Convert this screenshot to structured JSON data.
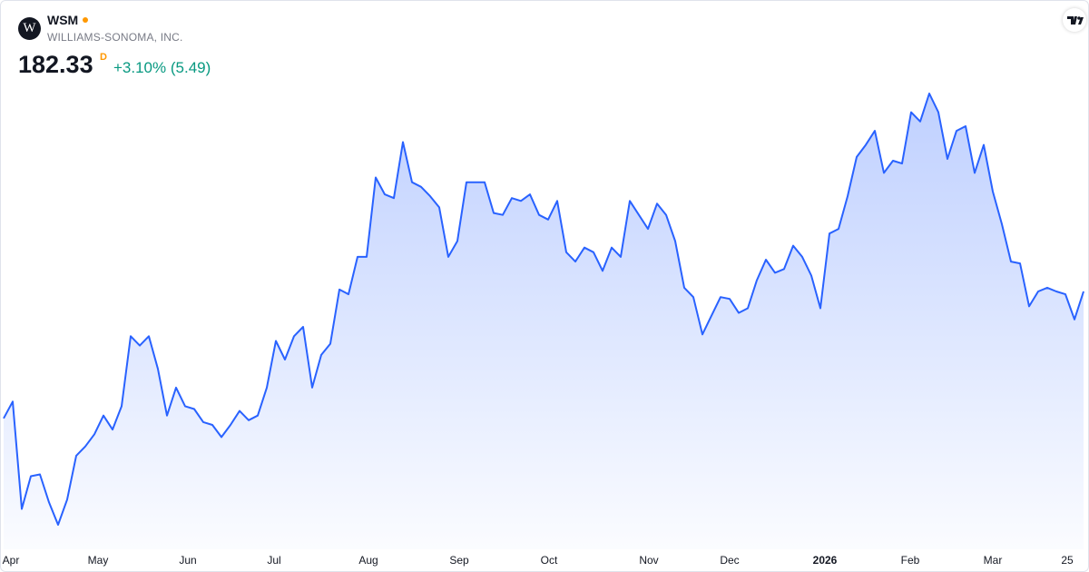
{
  "header": {
    "logo_letter": "W",
    "symbol": "WSM",
    "company": "WILLIAMS-SONOMA, INC.",
    "price": "182.33",
    "price_flag": "D",
    "change": "+3.10% (5.49)"
  },
  "chart_data": {
    "type": "area",
    "color": "#2962ff",
    "values": [
      157.44,
      160.74,
      139.69,
      146.1,
      146.46,
      140.97,
      136.58,
      141.52,
      150.12,
      151.95,
      154.33,
      157.99,
      155.25,
      159.82,
      173.55,
      171.72,
      173.55,
      167.14,
      157.99,
      163.48,
      159.82,
      159.27,
      156.71,
      156.16,
      153.78,
      156.16,
      158.91,
      157.08,
      157.99,
      163.48,
      172.63,
      168.97,
      173.55,
      175.38,
      163.48,
      169.89,
      172.08,
      182.7,
      181.78,
      189.1,
      189.1,
      204.66,
      201.36,
      200.63,
      211.61,
      203.74,
      202.83,
      201.0,
      198.8,
      189.1,
      192.21,
      203.74,
      203.74,
      203.74,
      197.7,
      197.34,
      200.63,
      200.08,
      201.36,
      197.34,
      196.42,
      200.08,
      190.02,
      188.19,
      190.93,
      190.02,
      186.36,
      190.93,
      189.1,
      200.08,
      197.34,
      194.59,
      199.53,
      197.34,
      192.21,
      183.06,
      181.23,
      173.91,
      177.57,
      181.23,
      180.87,
      178.12,
      179.04,
      184.53,
      188.55,
      185.99,
      186.72,
      191.3,
      189.1,
      185.44,
      179.04,
      193.68,
      194.59,
      201.0,
      208.68,
      211.06,
      213.81,
      205.57,
      207.95,
      207.4,
      217.47,
      215.64,
      221.13,
      217.47,
      208.32,
      213.81,
      214.72,
      205.57,
      211.06,
      201.91,
      195.51,
      188.19,
      187.82,
      179.4,
      182.33,
      183.06,
      182.33,
      181.78,
      176.84,
      182.33
    ],
    "xticks": [
      {
        "value": 0.8,
        "label": "Apr"
      },
      {
        "value": 10.4,
        "label": "May"
      },
      {
        "value": 20.3,
        "label": "Jun"
      },
      {
        "value": 29.8,
        "label": "Jul"
      },
      {
        "value": 40.2,
        "label": "Aug"
      },
      {
        "value": 50.2,
        "label": "Sep"
      },
      {
        "value": 60.1,
        "label": "Oct"
      },
      {
        "value": 71.1,
        "label": "Nov"
      },
      {
        "value": 80.0,
        "label": "Dec"
      },
      {
        "value": 90.5,
        "label": "2026",
        "bold": true
      },
      {
        "value": 99.9,
        "label": "Feb"
      },
      {
        "value": 109.0,
        "label": "Mar"
      },
      {
        "value": 117.2,
        "label": "25"
      }
    ]
  }
}
